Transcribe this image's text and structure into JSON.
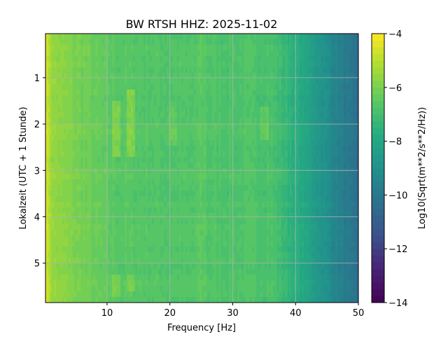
{
  "chart_data": {
    "type": "heatmap",
    "title": "BW RTSH  HHZ: 2025-11-02",
    "xlabel": "Frequency [Hz]",
    "ylabel": "Lokalzeit (UTC + 1 Stunde)",
    "xlim": [
      0.2,
      50
    ],
    "ylim": [
      5.85,
      0.05
    ],
    "xticks": [
      "10",
      "20",
      "30",
      "40",
      "50"
    ],
    "yticks": [
      "1",
      "2",
      "3",
      "4",
      "5"
    ],
    "grid": true,
    "colormap": "viridis",
    "colorbar": {
      "label": "Log10(Sqrt(m**2/s**2/Hz))",
      "range": [
        -14,
        -4
      ],
      "ticks": [
        "−4",
        "−6",
        "−8",
        "−10",
        "−12",
        "−14"
      ],
      "levels": 40
    },
    "mean_level_profile": [
      [
        0.2,
        -4.2
      ],
      [
        0.6,
        -5.0
      ],
      [
        1.5,
        -5.6
      ],
      [
        5,
        -6.0
      ],
      [
        9,
        -6.4
      ],
      [
        12,
        -6.6
      ],
      [
        20,
        -6.7
      ],
      [
        36,
        -6.8
      ],
      [
        38,
        -7.2
      ],
      [
        41,
        -7.9
      ],
      [
        44,
        -8.8
      ],
      [
        47,
        -9.6
      ],
      [
        50,
        -10.4
      ]
    ],
    "features": [
      {
        "freq": 11.5,
        "hours": [
          1.5,
          2.7
        ],
        "boost": 0.8
      },
      {
        "freq": 13.8,
        "hours": [
          1.2,
          2.7
        ],
        "boost": 0.9
      },
      {
        "freq": 11.5,
        "hours": [
          5.3,
          5.7
        ],
        "boost": 0.7
      },
      {
        "freq": 13.8,
        "hours": [
          5.3,
          5.6
        ],
        "boost": 0.6
      },
      {
        "freq": 20.5,
        "hours": [
          1.6,
          2.5
        ],
        "boost": 0.4
      },
      {
        "freq": 35.0,
        "hours": [
          1.6,
          2.4
        ],
        "boost": 0.5
      },
      {
        "freq": 25.0,
        "hours": [
          0.0,
          5.85
        ],
        "boost": 0.25
      }
    ],
    "grid_color": "#b0b0b0"
  }
}
